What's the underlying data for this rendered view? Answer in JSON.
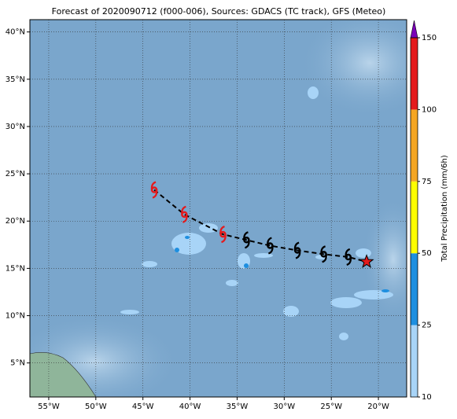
{
  "chart_data": {
    "type": "map",
    "title": "Forecast of 2020090712 (f000-006), Sources: GDACS (TC track), GFS (Meteo)",
    "xlim": [
      -57,
      -17
    ],
    "ylim": [
      1.4,
      41.3
    ],
    "xticks": [
      {
        "value": -55,
        "label": "55°W"
      },
      {
        "value": -50,
        "label": "50°W"
      },
      {
        "value": -45,
        "label": "45°W"
      },
      {
        "value": -40,
        "label": "40°W"
      },
      {
        "value": -35,
        "label": "35°W"
      },
      {
        "value": -30,
        "label": "30°W"
      },
      {
        "value": -25,
        "label": "25°W"
      },
      {
        "value": -20,
        "label": "20°W"
      }
    ],
    "yticks": [
      {
        "value": 5,
        "label": "5°N"
      },
      {
        "value": 10,
        "label": "10°N"
      },
      {
        "value": 15,
        "label": "15°N"
      },
      {
        "value": 20,
        "label": "20°N"
      },
      {
        "value": 25,
        "label": "25°N"
      },
      {
        "value": 30,
        "label": "30°N"
      },
      {
        "value": 35,
        "label": "35°N"
      },
      {
        "value": 40,
        "label": "40°N"
      }
    ],
    "grid": true,
    "track": {
      "lon": [
        -43.8,
        -40.6,
        -36.5,
        -34.0,
        -31.5,
        -28.6,
        -25.8,
        -23.2,
        -21.25
      ],
      "lat": [
        23.3,
        20.7,
        18.6,
        18.0,
        17.4,
        16.9,
        16.5,
        16.2,
        15.7
      ],
      "colors": [
        "#e41a1c",
        "#e41a1c",
        "#e41a1c",
        "#000000",
        "#000000",
        "#000000",
        "#000000",
        "#000000",
        "#e41a1c"
      ]
    },
    "colorbar": {
      "label": "Total Precipitation (mm/6h)",
      "levels": [
        10,
        25,
        50,
        75,
        100,
        150
      ],
      "colors": [
        "#a8d4f7",
        "#1e8fe0",
        "#ffff00",
        "#f5a623",
        "#e41a1c"
      ],
      "extend_color": "#7a00b8"
    }
  }
}
